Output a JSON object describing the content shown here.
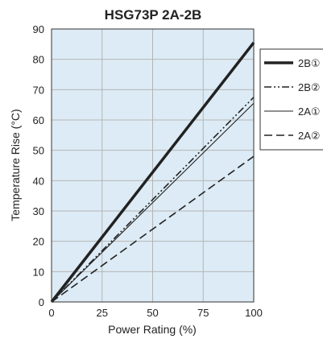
{
  "chart_data": {
    "type": "line",
    "title": "HSG73P 2A-2B",
    "xlabel": "Power Rating (%)",
    "ylabel": "Temperature Rise (°C)",
    "xlim": [
      0,
      100
    ],
    "ylim": [
      0,
      90
    ],
    "xticks": [
      0,
      25,
      50,
      75,
      100
    ],
    "yticks": [
      0,
      10,
      20,
      30,
      40,
      50,
      60,
      70,
      80,
      90
    ],
    "grid": true,
    "plot_background": "#dcebf5",
    "grid_color": "#b5b5b5",
    "legend_position": "right",
    "series": [
      {
        "name": "2B①",
        "x": [
          0,
          100
        ],
        "y": [
          0,
          85.5
        ],
        "style": "solid-thick",
        "color": "#222222"
      },
      {
        "name": "2B②",
        "x": [
          0,
          100
        ],
        "y": [
          0,
          67.5
        ],
        "style": "dash-dot-dot",
        "color": "#222222"
      },
      {
        "name": "2A①",
        "x": [
          0,
          100
        ],
        "y": [
          0,
          65.5
        ],
        "style": "solid-thin",
        "color": "#222222"
      },
      {
        "name": "2A②",
        "x": [
          0,
          100
        ],
        "y": [
          0,
          48
        ],
        "style": "dashed",
        "color": "#222222"
      }
    ]
  }
}
